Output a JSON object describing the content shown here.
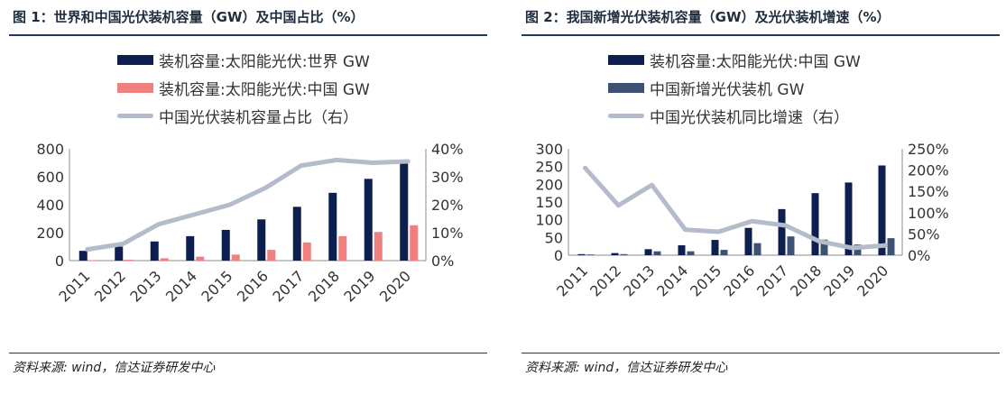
{
  "figure1": {
    "title": "图 1：世界和中国光伏装机容量（GW）及中国占比（%）",
    "source": "资料来源: wind，信达证券研发中心",
    "legend": [
      {
        "label": "装机容量:太阳能光伏:世界 GW",
        "kind": "bar",
        "color": "#0d1f4f"
      },
      {
        "label": "装机容量:太阳能光伏:中国 GW",
        "kind": "bar",
        "color": "#f08080"
      },
      {
        "label": "中国光伏装机容量占比（右）",
        "kind": "line",
        "color": "#b4bccb"
      }
    ]
  },
  "figure2": {
    "title": "图 2：我国新增光伏装机容量（GW）及光伏装机增速（%）",
    "source": "资料来源: wind，信达证券研发中心",
    "legend": [
      {
        "label": "装机容量:太阳能光伏:中国 GW",
        "kind": "bar",
        "color": "#0d1f4f"
      },
      {
        "label": "中国新增光伏装机 GW",
        "kind": "bar",
        "color": "#3d5273"
      },
      {
        "label": "中国光伏装机同比增速（右）",
        "kind": "line",
        "color": "#b4bccb"
      }
    ]
  },
  "chart_data": [
    {
      "type": "bar",
      "categories": [
        "2011",
        "2012",
        "2013",
        "2014",
        "2015",
        "2016",
        "2017",
        "2018",
        "2019",
        "2020"
      ],
      "series": [
        {
          "name": "装机容量:太阳能光伏:世界 GW",
          "type": "bar",
          "axis": "left",
          "color": "#0d1f4f",
          "values": [
            70,
            100,
            137,
            175,
            220,
            295,
            385,
            485,
            585,
            710
          ]
        },
        {
          "name": "装机容量:太阳能光伏:中国 GW",
          "type": "bar",
          "axis": "left",
          "color": "#f08080",
          "values": [
            3,
            6,
            17,
            28,
            43,
            77,
            130,
            175,
            205,
            253
          ]
        },
        {
          "name": "中国光伏装机容量占比（右）",
          "type": "line",
          "axis": "right",
          "color": "#b4bccb",
          "values": [
            4,
            6,
            13,
            16.5,
            20,
            26,
            34,
            36,
            35,
            35.5
          ]
        }
      ],
      "ylim": [
        0,
        800
      ],
      "yticks": [
        0,
        200,
        400,
        600,
        800
      ],
      "y2lim": [
        0,
        40
      ],
      "y2ticks": [
        "0%",
        "10%",
        "20%",
        "30%",
        "40%"
      ],
      "grid": false,
      "legend": "top"
    },
    {
      "type": "bar",
      "categories": [
        "2011",
        "2012",
        "2013",
        "2014",
        "2015",
        "2016",
        "2017",
        "2018",
        "2019",
        "2020"
      ],
      "series": [
        {
          "name": "装机容量:太阳能光伏:中国 GW",
          "type": "bar",
          "axis": "left",
          "color": "#0d1f4f",
          "values": [
            3,
            6,
            17,
            28,
            43,
            77,
            130,
            175,
            205,
            253
          ]
        },
        {
          "name": "中国新增光伏装机 GW",
          "type": "bar",
          "axis": "left",
          "color": "#3d5273",
          "values": [
            2,
            3,
            11,
            11,
            15,
            34,
            53,
            44,
            30,
            48
          ]
        },
        {
          "name": "中国光伏装机同比增速（右）",
          "type": "line",
          "axis": "right",
          "color": "#b4bccb",
          "values": [
            205,
            117,
            165,
            60,
            55,
            80,
            70,
            33,
            17,
            23
          ]
        }
      ],
      "ylim": [
        0,
        300
      ],
      "yticks": [
        0,
        50,
        100,
        150,
        200,
        250,
        300
      ],
      "y2lim": [
        0,
        250
      ],
      "y2ticks": [
        "0%",
        "50%",
        "100%",
        "150%",
        "200%",
        "250%"
      ],
      "grid": false,
      "legend": "top"
    }
  ]
}
